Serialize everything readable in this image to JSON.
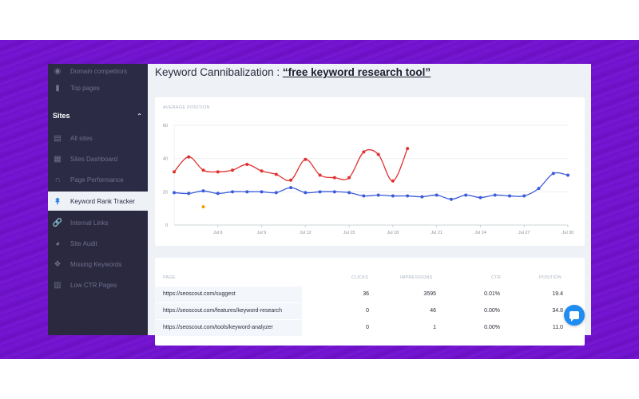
{
  "sidebar": {
    "items_top": [
      {
        "label": "Domain competitors",
        "icon": "globe-icon"
      },
      {
        "label": "Top pages",
        "icon": "pages-icon"
      }
    ],
    "section": {
      "label": "Sites",
      "icon": "chevron-up-icon"
    },
    "items": [
      {
        "label": "All sites",
        "icon": "list-icon"
      },
      {
        "label": "Sites Dashboard",
        "icon": "dashboard-icon"
      },
      {
        "label": "Page Performance",
        "icon": "gauge-icon"
      },
      {
        "label": "Keyword Rank Tracker",
        "icon": "double-chevron-up-icon",
        "active": true
      },
      {
        "label": "Internal Links",
        "icon": "link-icon"
      },
      {
        "label": "Site Audit",
        "icon": "pie-chart-icon"
      },
      {
        "label": "Missing Keywords",
        "icon": "puzzle-icon"
      },
      {
        "label": "Low CTR Pages",
        "icon": "bar-chart-down-icon"
      }
    ]
  },
  "header": {
    "title_prefix": "Keyword Cannibalization : ",
    "keyword": "“free keyword research tool”"
  },
  "chart_card": {
    "label": "AVERAGE POSITION"
  },
  "chart_data": {
    "type": "line",
    "title": "AVERAGE POSITION",
    "xlabel": "",
    "ylabel": "",
    "ylim": [
      0,
      60
    ],
    "yticks": [
      0,
      20,
      40,
      60
    ],
    "xticks": [
      "Jul 6",
      "Jul 9",
      "Jul 12",
      "Jul 15",
      "Jul 18",
      "Jul 21",
      "Jul 24",
      "Jul 27",
      "Jul 30"
    ],
    "grid": true,
    "x": [
      "Jul 3",
      "Jul 4",
      "Jul 5",
      "Jul 6",
      "Jul 7",
      "Jul 8",
      "Jul 9",
      "Jul 10",
      "Jul 11",
      "Jul 12",
      "Jul 13",
      "Jul 14",
      "Jul 15",
      "Jul 16",
      "Jul 17",
      "Jul 18",
      "Jul 19",
      "Jul 20",
      "Jul 21",
      "Jul 22",
      "Jul 23",
      "Jul 24",
      "Jul 25",
      "Jul 26",
      "Jul 27",
      "Jul 28",
      "Jul 29",
      "Jul 30"
    ],
    "series": [
      {
        "name": "https://seoscout.com/suggest",
        "color": "#3b5bdb",
        "values": [
          19.5,
          19,
          20.5,
          19,
          20,
          20,
          20,
          19.5,
          22.5,
          19.5,
          20,
          20,
          19.5,
          17.5,
          18,
          17.5,
          17.5,
          17,
          18,
          15.5,
          18,
          16.5,
          18,
          17.5,
          17.5,
          22,
          31,
          30
        ]
      },
      {
        "name": "https://seoscout.com/features/keyword-research",
        "color": "#e03131",
        "values": [
          32,
          41,
          33,
          32,
          33,
          36.5,
          32.5,
          30.5,
          27,
          39.5,
          30,
          28.5,
          28.5,
          44,
          42.5,
          26.5,
          46,
          null,
          null,
          null,
          null,
          null,
          null,
          null,
          null,
          null,
          null,
          null
        ]
      },
      {
        "name": "https://seoscout.com/tools/keyword-analyzer",
        "color": "#f59f00",
        "values": [
          null,
          null,
          11,
          null,
          null,
          null,
          null,
          null,
          null,
          null,
          null,
          null,
          null,
          null,
          null,
          null,
          null,
          null,
          null,
          null,
          null,
          null,
          null,
          null,
          null,
          null,
          null,
          null
        ]
      }
    ]
  },
  "table": {
    "columns": [
      "PAGE",
      "CLICKS",
      "IMPRESSIONS",
      "CTR",
      "POSITION"
    ],
    "rows": [
      {
        "page": "https://seoscout.com/suggest",
        "clicks": "36",
        "impressions": "3595",
        "ctr": "0.01%",
        "position": "19.4"
      },
      {
        "page": "https://seoscout.com/features/keyword-research",
        "clicks": "0",
        "impressions": "46",
        "ctr": "0.00%",
        "position": "34.8"
      },
      {
        "page": "https://seoscout.com/tools/keyword-analyzer",
        "clicks": "0",
        "impressions": "1",
        "ctr": "0.00%",
        "position": "11.0"
      }
    ]
  },
  "colors": {
    "background": "#7416d2",
    "sidebar": "#2c2b45",
    "accent": "#1e7be0",
    "chat_button": "#1e8cf0"
  }
}
